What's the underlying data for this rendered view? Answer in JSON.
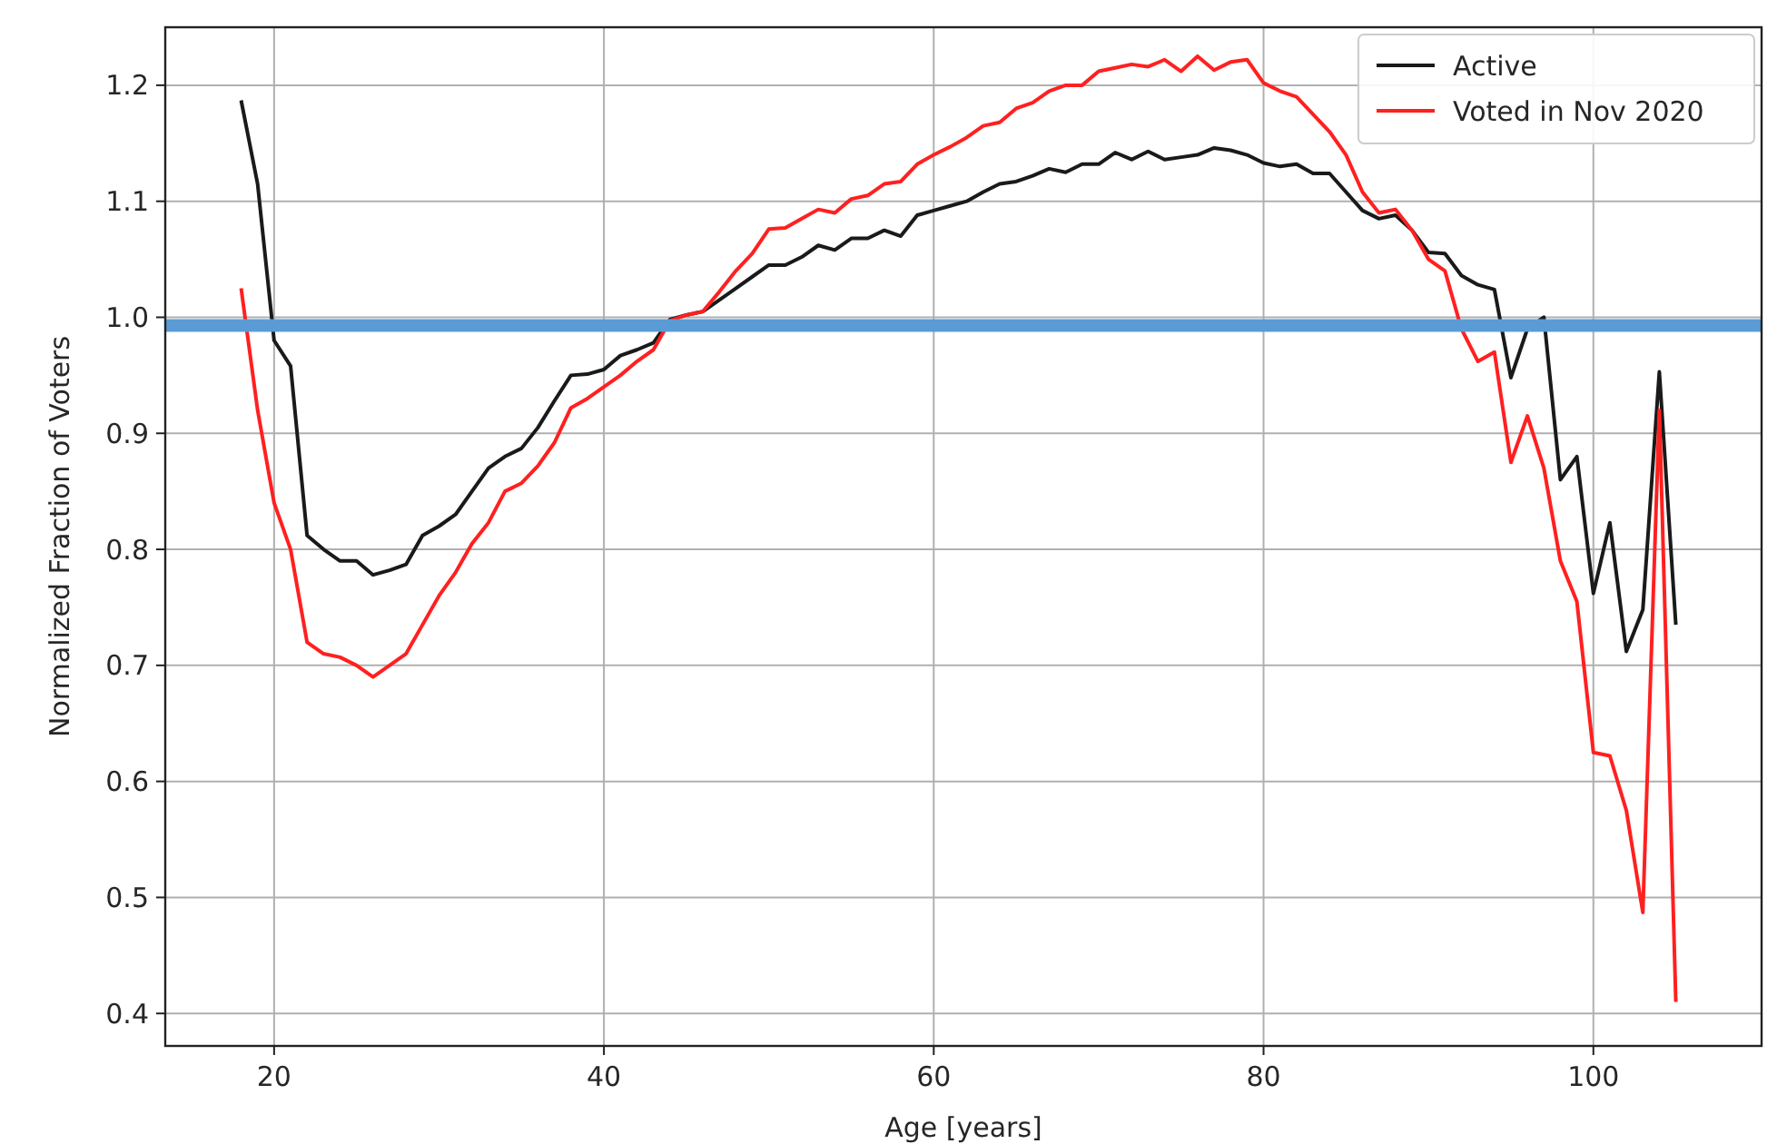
{
  "chart_data": {
    "type": "line",
    "xlabel": "Age [years]",
    "ylabel": "Normalized Fraction of Voters",
    "x": [
      18,
      19,
      20,
      21,
      22,
      23,
      24,
      25,
      26,
      27,
      28,
      29,
      30,
      31,
      32,
      33,
      34,
      35,
      36,
      37,
      38,
      39,
      40,
      41,
      42,
      43,
      44,
      45,
      46,
      47,
      48,
      49,
      50,
      51,
      52,
      53,
      54,
      55,
      56,
      57,
      58,
      59,
      60,
      61,
      62,
      63,
      64,
      65,
      66,
      67,
      68,
      69,
      70,
      71,
      72,
      73,
      74,
      75,
      76,
      77,
      78,
      79,
      80,
      81,
      82,
      83,
      84,
      85,
      86,
      87,
      88,
      89,
      90,
      91,
      92,
      93,
      94,
      95,
      96,
      97,
      98,
      99,
      100,
      101,
      102,
      103,
      104,
      105
    ],
    "series": [
      {
        "name": "Active",
        "color": "#1a1a1a",
        "values": [
          1.187,
          1.115,
          0.98,
          0.958,
          0.812,
          0.8,
          0.79,
          0.79,
          0.778,
          0.782,
          0.787,
          0.812,
          0.82,
          0.83,
          0.85,
          0.87,
          0.88,
          0.887,
          0.905,
          0.928,
          0.95,
          0.951,
          0.955,
          0.967,
          0.972,
          0.978,
          0.998,
          1.002,
          1.005,
          1.015,
          1.025,
          1.035,
          1.045,
          1.045,
          1.052,
          1.062,
          1.058,
          1.068,
          1.068,
          1.075,
          1.07,
          1.088,
          1.092,
          1.096,
          1.1,
          1.108,
          1.115,
          1.117,
          1.122,
          1.128,
          1.125,
          1.132,
          1.132,
          1.142,
          1.136,
          1.143,
          1.136,
          1.138,
          1.14,
          1.146,
          1.144,
          1.14,
          1.133,
          1.13,
          1.132,
          1.124,
          1.124,
          1.108,
          1.092,
          1.085,
          1.088,
          1.075,
          1.056,
          1.055,
          1.036,
          1.028,
          1.024,
          0.948,
          0.99,
          1.0,
          0.86,
          0.88,
          0.762,
          0.823,
          0.712,
          0.748,
          0.953,
          0.735
        ]
      },
      {
        "name": "Voted in Nov 2020",
        "color": "#ff2020",
        "values": [
          1.025,
          0.92,
          0.84,
          0.8,
          0.72,
          0.71,
          0.707,
          0.7,
          0.69,
          0.7,
          0.71,
          0.735,
          0.76,
          0.78,
          0.805,
          0.823,
          0.85,
          0.857,
          0.872,
          0.892,
          0.922,
          0.93,
          0.94,
          0.95,
          0.962,
          0.972,
          0.997,
          1.002,
          1.005,
          1.022,
          1.04,
          1.055,
          1.076,
          1.077,
          1.085,
          1.093,
          1.09,
          1.102,
          1.105,
          1.115,
          1.117,
          1.132,
          1.14,
          1.147,
          1.155,
          1.165,
          1.168,
          1.18,
          1.185,
          1.195,
          1.2,
          1.2,
          1.212,
          1.215,
          1.218,
          1.216,
          1.222,
          1.212,
          1.225,
          1.213,
          1.22,
          1.222,
          1.202,
          1.195,
          1.19,
          1.175,
          1.16,
          1.14,
          1.108,
          1.09,
          1.093,
          1.075,
          1.05,
          1.04,
          0.99,
          0.962,
          0.97,
          0.875,
          0.915,
          0.87,
          0.79,
          0.755,
          0.625,
          0.622,
          0.575,
          0.487,
          0.92,
          0.41
        ]
      }
    ],
    "xlim": [
      13.4,
      110.2
    ],
    "xticks": [
      20,
      40,
      60,
      80,
      100
    ],
    "ylim": [
      0.372,
      1.25
    ],
    "yticks": [
      {
        "value": 0.4,
        "label": "0.4"
      },
      {
        "value": 0.5,
        "label": "0.5"
      },
      {
        "value": 0.6,
        "label": "0.6"
      },
      {
        "value": 0.7,
        "label": "0.7"
      },
      {
        "value": 0.8,
        "label": "0.8"
      },
      {
        "value": 0.9,
        "label": "0.9"
      },
      {
        "value": 1.0,
        "label": "1.0"
      },
      {
        "value": 1.1,
        "label": "1.1"
      },
      {
        "value": 1.2,
        "label": "1.2"
      }
    ],
    "ref_lines": [
      {
        "axis": "y",
        "value": 0.993,
        "color": "#5b9bd5"
      }
    ],
    "grid": true,
    "legend": "top right",
    "line_style": "solid",
    "marker": "none"
  }
}
